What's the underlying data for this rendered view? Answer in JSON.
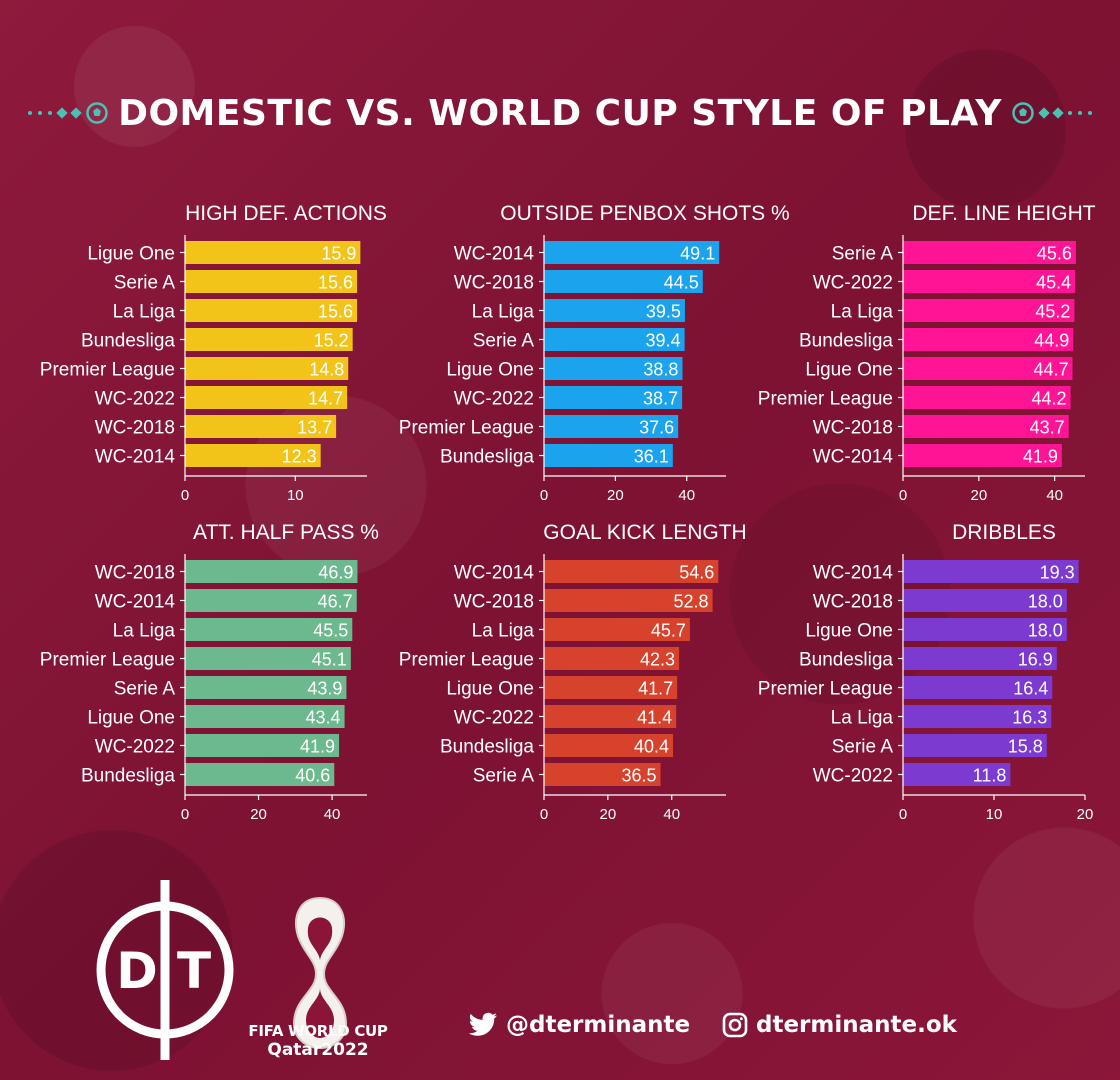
{
  "title": "DOMESTIC VS. WORLD CUP STYLE OF PLAY",
  "colors": {
    "background": "#8a1538",
    "accent": "#47c2b5"
  },
  "chart_data": [
    {
      "type": "bar",
      "title": "HIGH DEF. ACTIONS",
      "color": "#f2c318",
      "categories": [
        "Ligue One",
        "Serie A",
        "La Liga",
        "Bundesliga",
        "Premier League",
        "WC-2022",
        "WC-2018",
        "WC-2014"
      ],
      "values": [
        15.9,
        15.6,
        15.6,
        15.2,
        14.8,
        14.7,
        13.7,
        12.3
      ],
      "labels": [
        "15.9",
        "15.6",
        "15.6",
        "15.2",
        "14.8",
        "14.7",
        "13.7",
        "12.3"
      ],
      "xlim": [
        0,
        16.5
      ],
      "xticks": [
        0,
        10
      ],
      "tick_labels": [
        "0",
        "10"
      ]
    },
    {
      "type": "bar",
      "title": "OUTSIDE PENBOX SHOTS %",
      "color": "#1ba3ee",
      "categories": [
        "WC-2014",
        "WC-2018",
        "La Liga",
        "Serie A",
        "Ligue One",
        "WC-2022",
        "Premier League",
        "Bundesliga"
      ],
      "values": [
        49.1,
        44.5,
        39.5,
        39.4,
        38.8,
        38.7,
        37.6,
        36.1
      ],
      "labels": [
        "49.1",
        "44.5",
        "39.5",
        "39.4",
        "38.8",
        "38.7",
        "37.6",
        "36.1"
      ],
      "xlim": [
        0,
        51
      ],
      "xticks": [
        0,
        20,
        40
      ],
      "tick_labels": [
        "0",
        "20",
        "40"
      ]
    },
    {
      "type": "bar",
      "title": "DEF. LINE HEIGHT",
      "color": "#ff1496",
      "categories": [
        "Serie A",
        "WC-2022",
        "La Liga",
        "Bundesliga",
        "Ligue One",
        "Premier League",
        "WC-2018",
        "WC-2014"
      ],
      "values": [
        45.6,
        45.4,
        45.2,
        44.9,
        44.7,
        44.2,
        43.7,
        41.9
      ],
      "labels": [
        "45.6",
        "45.4",
        "45.2",
        "44.9",
        "44.7",
        "44.2",
        "43.7",
        "41.9"
      ],
      "xlim": [
        0,
        48
      ],
      "xticks": [
        0,
        20,
        40
      ],
      "tick_labels": [
        "0",
        "20",
        "40"
      ]
    },
    {
      "type": "bar",
      "title": "ATT. HALF PASS %",
      "color": "#6cb98f",
      "categories": [
        "WC-2018",
        "WC-2014",
        "La Liga",
        "Premier League",
        "Serie A",
        "Ligue One",
        "WC-2022",
        "Bundesliga"
      ],
      "values": [
        46.9,
        46.7,
        45.5,
        45.1,
        43.9,
        43.4,
        41.9,
        40.6
      ],
      "labels": [
        "46.9",
        "46.7",
        "45.5",
        "45.1",
        "43.9",
        "43.4",
        "41.9",
        "40.6"
      ],
      "xlim": [
        0,
        49.5
      ],
      "xticks": [
        0,
        20,
        40
      ],
      "tick_labels": [
        "0",
        "20",
        "40"
      ]
    },
    {
      "type": "bar",
      "title": "GOAL KICK LENGTH",
      "color": "#d6422c",
      "categories": [
        "WC-2014",
        "WC-2018",
        "La Liga",
        "Premier League",
        "Ligue One",
        "WC-2022",
        "Bundesliga",
        "Serie A"
      ],
      "values": [
        54.6,
        52.8,
        45.7,
        42.3,
        41.7,
        41.4,
        40.4,
        36.5
      ],
      "labels": [
        "54.6",
        "52.8",
        "45.7",
        "42.3",
        "41.7",
        "41.4",
        "40.4",
        "36.5"
      ],
      "xlim": [
        0,
        57
      ],
      "xticks": [
        0,
        20,
        40
      ],
      "tick_labels": [
        "0",
        "20",
        "40"
      ]
    },
    {
      "type": "bar",
      "title": "DRIBBLES",
      "color": "#7d3ad0",
      "categories": [
        "WC-2014",
        "WC-2018",
        "Ligue One",
        "Bundesliga",
        "Premier League",
        "La Liga",
        "Serie A",
        "WC-2022"
      ],
      "values": [
        19.3,
        18.0,
        18.0,
        16.9,
        16.4,
        16.3,
        15.8,
        11.8
      ],
      "labels": [
        "19.3",
        "18.0",
        "18.0",
        "16.9",
        "16.4",
        "16.3",
        "15.8",
        "11.8"
      ],
      "xlim": [
        0,
        20
      ],
      "xticks": [
        0,
        10,
        20
      ],
      "tick_labels": [
        "0",
        "10",
        "20"
      ]
    }
  ],
  "footer": {
    "logo_letters": "D|T",
    "wc_line1": "FIFA WORLD CUP",
    "wc_line2": "Qatar2022",
    "twitter_handle": "@dterminante",
    "instagram_handle": "dterminante.ok",
    "twitter_icon": "twitter-bird-icon",
    "instagram_icon": "instagram-icon"
  }
}
